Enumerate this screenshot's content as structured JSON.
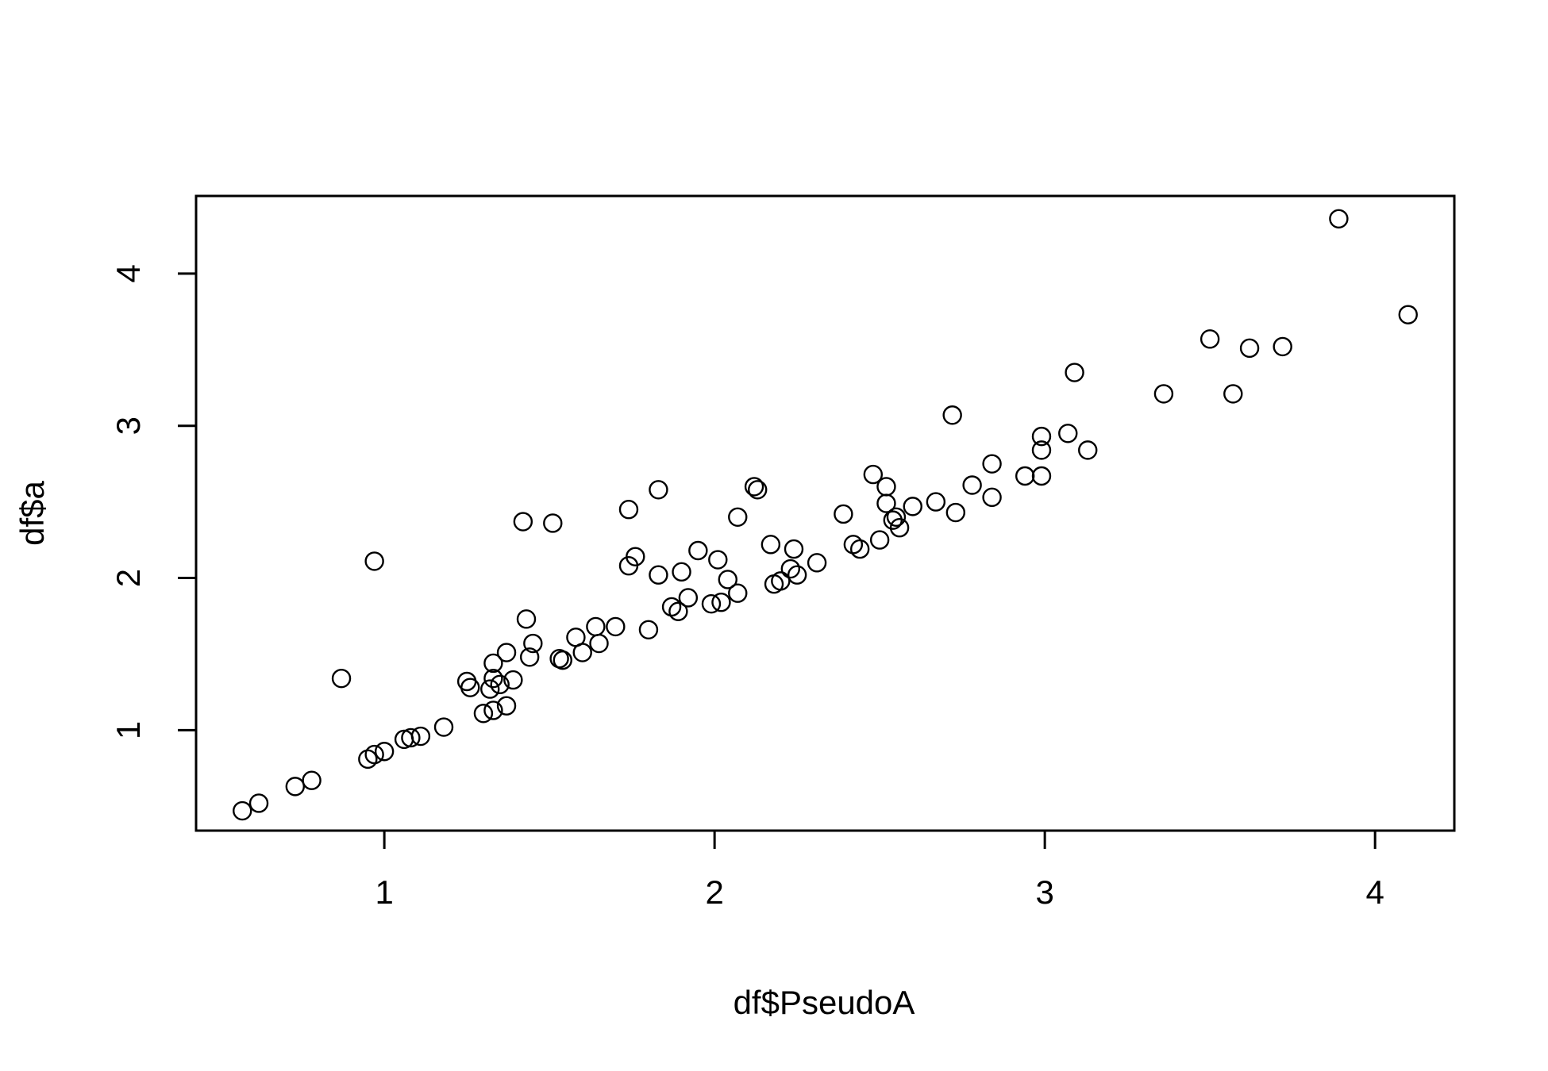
{
  "chart_data": {
    "type": "scatter",
    "title": "",
    "xlabel": "df$PseudoA",
    "ylabel": "df$a",
    "xlim": [
      0.43,
      4.24
    ],
    "ylim": [
      0.34,
      4.51
    ],
    "x_ticks": [
      1,
      2,
      3,
      4
    ],
    "y_ticks": [
      1,
      2,
      3,
      4
    ],
    "x_tick_labels": [
      "1",
      "2",
      "3",
      "4"
    ],
    "y_tick_labels": [
      "1",
      "2",
      "3",
      "4"
    ],
    "grid": false,
    "legend": "none",
    "marker": "open-circle",
    "points": [
      {
        "x": 0.57,
        "y": 0.47
      },
      {
        "x": 0.62,
        "y": 0.52
      },
      {
        "x": 0.73,
        "y": 0.63
      },
      {
        "x": 0.78,
        "y": 0.67
      },
      {
        "x": 0.87,
        "y": 1.34
      },
      {
        "x": 0.97,
        "y": 2.11
      },
      {
        "x": 0.95,
        "y": 0.81
      },
      {
        "x": 0.97,
        "y": 0.84
      },
      {
        "x": 1.0,
        "y": 0.86
      },
      {
        "x": 1.06,
        "y": 0.94
      },
      {
        "x": 1.08,
        "y": 0.95
      },
      {
        "x": 1.11,
        "y": 0.96
      },
      {
        "x": 1.18,
        "y": 1.02
      },
      {
        "x": 1.3,
        "y": 1.11
      },
      {
        "x": 1.33,
        "y": 1.13
      },
      {
        "x": 1.37,
        "y": 1.16
      },
      {
        "x": 1.25,
        "y": 1.32
      },
      {
        "x": 1.26,
        "y": 1.28
      },
      {
        "x": 1.32,
        "y": 1.27
      },
      {
        "x": 1.33,
        "y": 1.34
      },
      {
        "x": 1.35,
        "y": 1.3
      },
      {
        "x": 1.33,
        "y": 1.44
      },
      {
        "x": 1.37,
        "y": 1.51
      },
      {
        "x": 1.39,
        "y": 1.33
      },
      {
        "x": 1.42,
        "y": 2.37
      },
      {
        "x": 1.43,
        "y": 1.73
      },
      {
        "x": 1.44,
        "y": 1.48
      },
      {
        "x": 1.45,
        "y": 1.57
      },
      {
        "x": 1.51,
        "y": 2.36
      },
      {
        "x": 1.53,
        "y": 1.47
      },
      {
        "x": 1.54,
        "y": 1.46
      },
      {
        "x": 1.58,
        "y": 1.61
      },
      {
        "x": 1.6,
        "y": 1.51
      },
      {
        "x": 1.64,
        "y": 1.68
      },
      {
        "x": 1.65,
        "y": 1.57
      },
      {
        "x": 1.7,
        "y": 1.68
      },
      {
        "x": 1.74,
        "y": 2.45
      },
      {
        "x": 1.74,
        "y": 2.08
      },
      {
        "x": 1.76,
        "y": 2.14
      },
      {
        "x": 1.8,
        "y": 1.66
      },
      {
        "x": 1.83,
        "y": 2.58
      },
      {
        "x": 1.83,
        "y": 2.02
      },
      {
        "x": 1.87,
        "y": 1.81
      },
      {
        "x": 1.89,
        "y": 1.78
      },
      {
        "x": 1.9,
        "y": 2.04
      },
      {
        "x": 1.92,
        "y": 1.87
      },
      {
        "x": 1.95,
        "y": 2.18
      },
      {
        "x": 1.99,
        "y": 1.83
      },
      {
        "x": 2.01,
        "y": 2.12
      },
      {
        "x": 2.02,
        "y": 1.84
      },
      {
        "x": 2.04,
        "y": 1.99
      },
      {
        "x": 2.07,
        "y": 2.4
      },
      {
        "x": 2.07,
        "y": 1.9
      },
      {
        "x": 2.12,
        "y": 2.6
      },
      {
        "x": 2.13,
        "y": 2.58
      },
      {
        "x": 2.17,
        "y": 2.22
      },
      {
        "x": 2.18,
        "y": 1.96
      },
      {
        "x": 2.2,
        "y": 1.98
      },
      {
        "x": 2.23,
        "y": 2.06
      },
      {
        "x": 2.24,
        "y": 2.19
      },
      {
        "x": 2.25,
        "y": 2.02
      },
      {
        "x": 2.31,
        "y": 2.1
      },
      {
        "x": 2.39,
        "y": 2.42
      },
      {
        "x": 2.42,
        "y": 2.22
      },
      {
        "x": 2.44,
        "y": 2.19
      },
      {
        "x": 2.48,
        "y": 2.68
      },
      {
        "x": 2.5,
        "y": 2.25
      },
      {
        "x": 2.52,
        "y": 2.6
      },
      {
        "x": 2.52,
        "y": 2.49
      },
      {
        "x": 2.54,
        "y": 2.38
      },
      {
        "x": 2.55,
        "y": 2.4
      },
      {
        "x": 2.56,
        "y": 2.33
      },
      {
        "x": 2.6,
        "y": 2.47
      },
      {
        "x": 2.67,
        "y": 2.5
      },
      {
        "x": 2.72,
        "y": 3.07
      },
      {
        "x": 2.73,
        "y": 2.43
      },
      {
        "x": 2.78,
        "y": 2.61
      },
      {
        "x": 2.84,
        "y": 2.53
      },
      {
        "x": 2.84,
        "y": 2.75
      },
      {
        "x": 2.94,
        "y": 2.67
      },
      {
        "x": 2.99,
        "y": 2.93
      },
      {
        "x": 2.99,
        "y": 2.84
      },
      {
        "x": 2.99,
        "y": 2.67
      },
      {
        "x": 3.07,
        "y": 2.95
      },
      {
        "x": 3.09,
        "y": 3.35
      },
      {
        "x": 3.13,
        "y": 2.84
      },
      {
        "x": 3.36,
        "y": 3.21
      },
      {
        "x": 3.5,
        "y": 3.57
      },
      {
        "x": 3.57,
        "y": 3.21
      },
      {
        "x": 3.62,
        "y": 3.51
      },
      {
        "x": 3.72,
        "y": 3.52
      },
      {
        "x": 3.89,
        "y": 4.36
      },
      {
        "x": 4.1,
        "y": 3.73
      }
    ]
  }
}
